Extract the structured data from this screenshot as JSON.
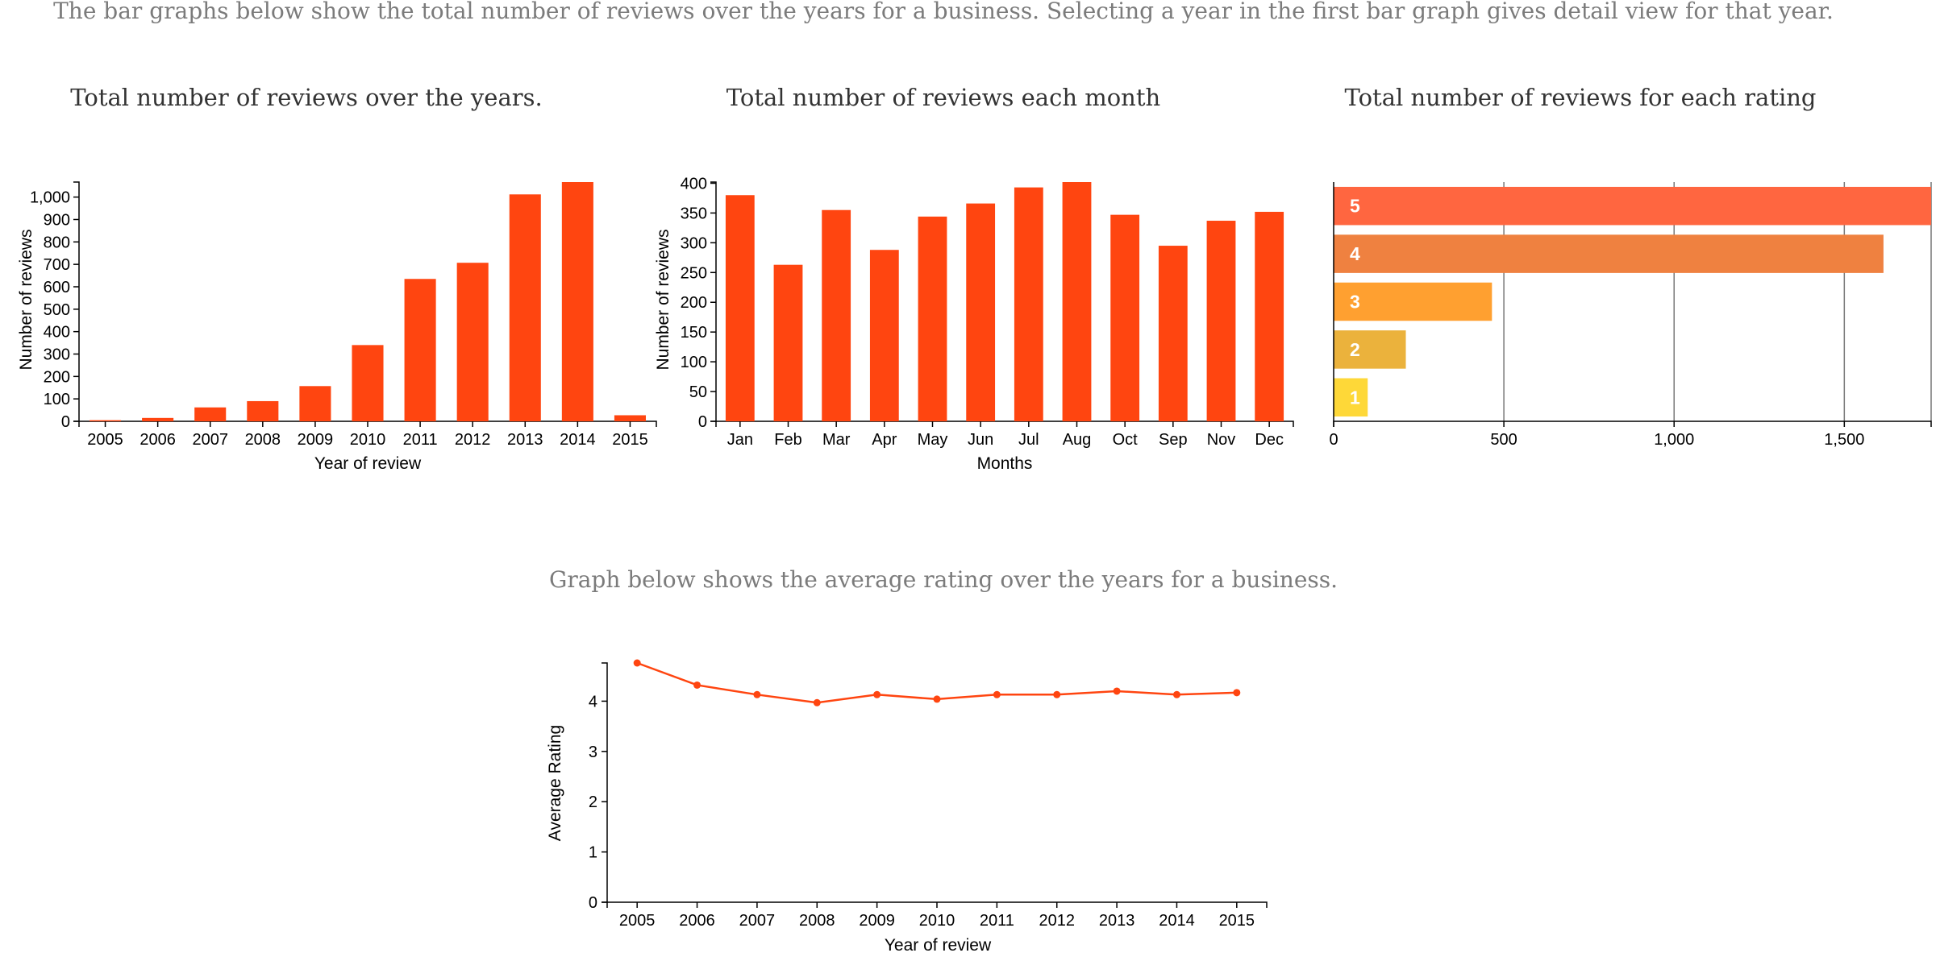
{
  "intro": "The bar graphs below show the total number of reviews over the years for a business. Selecting a year in the first bar graph gives detail view for that year.",
  "line_intro": "Graph below shows the average rating over the years for a business.",
  "colors": {
    "bar": "#ff4510",
    "line": "#ff4510"
  },
  "chart_data": [
    {
      "type": "bar",
      "title": "Total number of reviews over the years.",
      "xlabel": "Year of review",
      "ylabel": "Number of reviews",
      "categories": [
        "2005",
        "2006",
        "2007",
        "2008",
        "2009",
        "2010",
        "2011",
        "2012",
        "2013",
        "2014",
        "2015"
      ],
      "values": [
        5,
        15,
        62,
        90,
        157,
        340,
        635,
        707,
        1012,
        1067,
        27
      ],
      "ylim": [
        0,
        1067
      ],
      "yticks": [
        0,
        100,
        200,
        300,
        400,
        500,
        600,
        700,
        800,
        900,
        1000
      ],
      "ytick_labels": [
        "0",
        "100",
        "200",
        "300",
        "400",
        "500",
        "600",
        "700",
        "800",
        "900",
        "1,000"
      ],
      "grid": false
    },
    {
      "type": "bar",
      "title": "Total number of reviews each month",
      "xlabel": "Months",
      "ylabel": "Number of reviews",
      "categories": [
        "Jan",
        "Feb",
        "Mar",
        "Apr",
        "May",
        "Jun",
        "Jul",
        "Aug",
        "Oct",
        "Sep",
        "Nov",
        "Dec"
      ],
      "values": [
        380,
        263,
        355,
        288,
        344,
        366,
        393,
        402,
        347,
        295,
        337,
        352
      ],
      "ylim": [
        0,
        402
      ],
      "yticks": [
        0,
        50,
        100,
        150,
        200,
        250,
        300,
        350,
        400
      ],
      "ytick_labels": [
        "0",
        "50",
        "100",
        "150",
        "200",
        "250",
        "300",
        "350",
        "400"
      ],
      "grid": false
    },
    {
      "type": "bar",
      "orientation": "horizontal",
      "title": "Total number of reviews for each rating",
      "categories": [
        "5",
        "4",
        "3",
        "2",
        "1"
      ],
      "values": [
        1755,
        1615,
        465,
        212,
        100
      ],
      "colors": [
        "#ff6640",
        "#ef8140",
        "#ffa030",
        "#ebb23c",
        "#fed838"
      ],
      "xlim": [
        0,
        1755
      ],
      "xticks": [
        0,
        500,
        1000,
        1500
      ],
      "xtick_labels": [
        "0",
        "500",
        "1,000",
        "1,500"
      ],
      "grid": true
    },
    {
      "type": "line",
      "xlabel": "Year of review",
      "ylabel": "Average Rating",
      "x": [
        "2005",
        "2006",
        "2007",
        "2008",
        "2009",
        "2010",
        "2011",
        "2012",
        "2013",
        "2014",
        "2015"
      ],
      "values": [
        4.76,
        4.32,
        4.13,
        3.97,
        4.13,
        4.04,
        4.13,
        4.13,
        4.2,
        4.13,
        4.17
      ],
      "ylim": [
        0,
        4.76
      ],
      "yticks": [
        0,
        1,
        2,
        3,
        4
      ],
      "ytick_labels": [
        "0",
        "1",
        "2",
        "3",
        "4"
      ],
      "grid": false
    }
  ]
}
